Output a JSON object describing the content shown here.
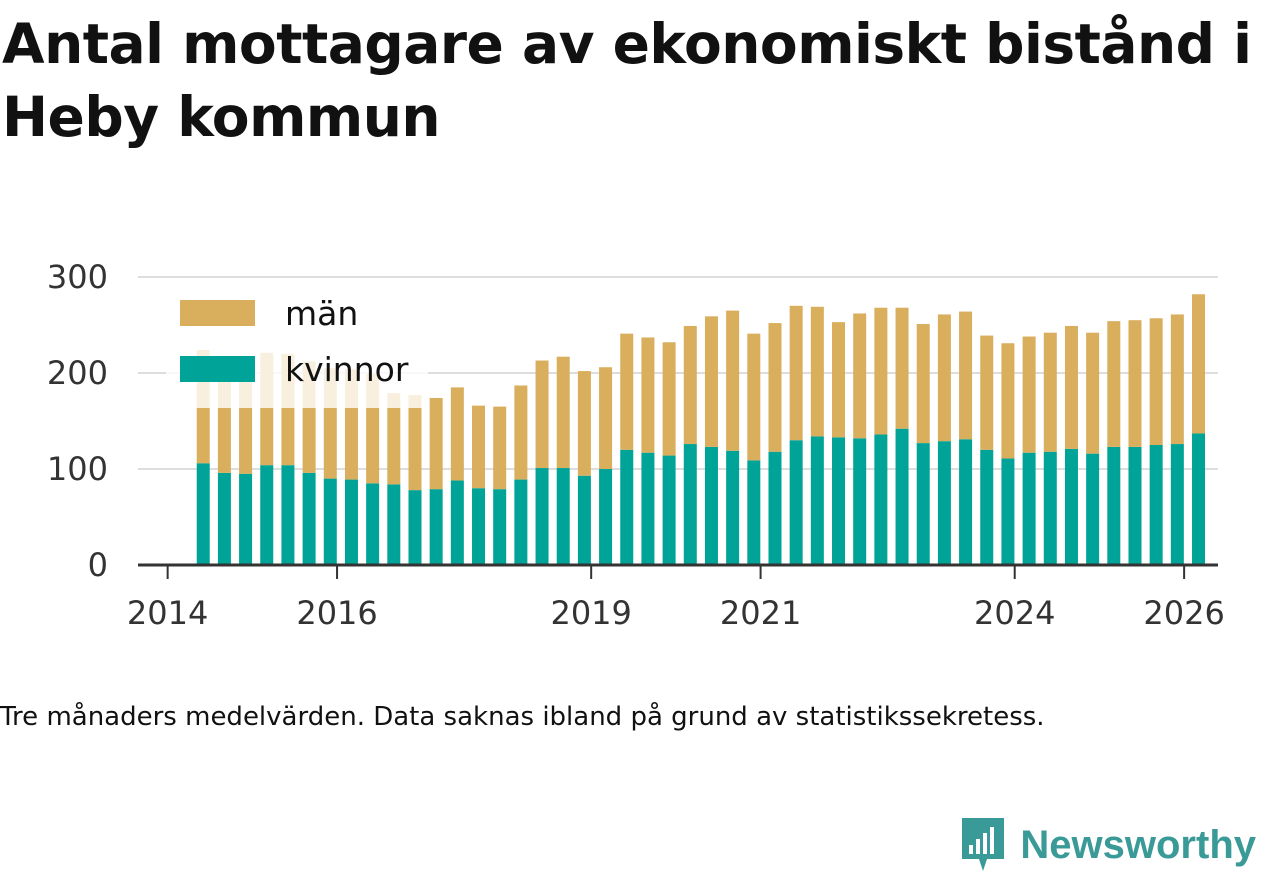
{
  "title": "Antal mottagare av ekonomiskt bistånd i Heby kommun",
  "caption": "Tre månaders medelvärden. Data saknas ibland på grund av statistikssekretess.",
  "brand": "Newsworthy",
  "colors": {
    "men": "#d9ae5c",
    "women": "#00a397",
    "grid": "#dddddd",
    "axis": "#333333",
    "brand": "#3a9a97"
  },
  "chart_data": {
    "type": "bar",
    "stacked": true,
    "title": "Antal mottagare av ekonomiskt bistånd i Heby kommun",
    "xlabel": "",
    "ylabel": "",
    "ylim": [
      0,
      300
    ],
    "yticks": [
      0,
      100,
      200,
      300
    ],
    "xlim": [
      2013.65,
      2026.4
    ],
    "xticks": [
      2014,
      2016,
      2019,
      2021,
      2024,
      2026
    ],
    "xtick_labels": [
      "2014",
      "2016",
      "2019",
      "2021",
      "2024",
      "2026"
    ],
    "legend_position": "top-left",
    "x": [
      2014.42,
      2014.67,
      2014.92,
      2015.17,
      2015.42,
      2015.67,
      2015.92,
      2016.17,
      2016.42,
      2016.67,
      2016.92,
      2017.17,
      2017.42,
      2017.67,
      2017.92,
      2018.17,
      2018.42,
      2018.67,
      2018.92,
      2019.17,
      2019.42,
      2019.67,
      2019.92,
      2020.17,
      2020.42,
      2020.67,
      2020.92,
      2021.17,
      2021.42,
      2021.67,
      2021.92,
      2022.17,
      2022.42,
      2022.67,
      2022.92,
      2023.17,
      2023.42,
      2023.67,
      2023.92,
      2024.17,
      2024.42,
      2024.67,
      2024.92,
      2025.17,
      2025.42,
      2025.67,
      2025.92,
      2026.17
    ],
    "series": [
      {
        "name": "kvinnor",
        "values": [
          106,
          96,
          95,
          104,
          104,
          96,
          90,
          89,
          85,
          84,
          78,
          79,
          88,
          80,
          79,
          89,
          101,
          101,
          93,
          100,
          120,
          117,
          114,
          126,
          123,
          119,
          109,
          118,
          130,
          134,
          133,
          132,
          136,
          142,
          127,
          129,
          131,
          120,
          111,
          117,
          118,
          121,
          116,
          123,
          123,
          125,
          126,
          137
        ]
      },
      {
        "name": "män",
        "values": [
          118,
          117,
          116,
          117,
          116,
          116,
          115,
          115,
          114,
          95,
          99,
          95,
          97,
          86,
          86,
          98,
          112,
          116,
          109,
          106,
          121,
          120,
          118,
          123,
          136,
          146,
          132,
          134,
          140,
          135,
          120,
          130,
          132,
          126,
          124,
          132,
          133,
          119,
          120,
          121,
          124,
          128,
          126,
          131,
          132,
          132,
          135,
          145
        ]
      }
    ],
    "legend": [
      {
        "label": "män",
        "series": "män"
      },
      {
        "label": "kvinnor",
        "series": "kvinnor"
      }
    ]
  }
}
